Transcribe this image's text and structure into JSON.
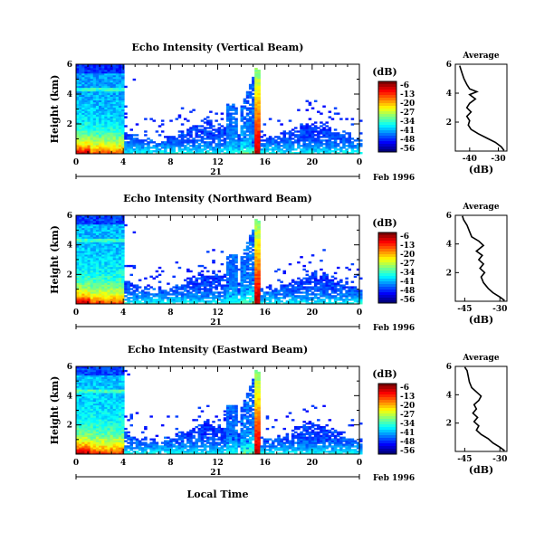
{
  "chart_data": [
    {
      "type": "heatmap",
      "title": "Echo Intensity (Vertical Beam)",
      "ylabel": "Height (km)",
      "x_ticks": [
        "0",
        "4",
        "8",
        "12",
        "16",
        "20",
        "0"
      ],
      "xlim": [
        0,
        24
      ],
      "y_ticks": [
        "2",
        "4",
        "6"
      ],
      "ylim": [
        0,
        6
      ],
      "date_label": "21",
      "date_suffix": "Feb 1996",
      "colorbar": {
        "title": "(dB)",
        "ticks": [
          "-6",
          "-13",
          "-20",
          "-27",
          "-34",
          "-41",
          "-48",
          "-56"
        ]
      },
      "average_profile": {
        "title": "Average",
        "xlabel": "(dB)",
        "x_ticks": [
          "-40",
          "-30"
        ],
        "xlim": [
          -45,
          -27
        ],
        "y_ticks": [
          "2",
          "4",
          "6"
        ],
        "ylim": [
          0,
          6
        ],
        "points": [
          [
            -28,
            0.05
          ],
          [
            -29,
            0.3
          ],
          [
            -31,
            0.6
          ],
          [
            -34,
            0.9
          ],
          [
            -37,
            1.2
          ],
          [
            -39.5,
            1.5
          ],
          [
            -40.5,
            1.8
          ],
          [
            -40,
            2.1
          ],
          [
            -41,
            2.4
          ],
          [
            -39.5,
            2.7
          ],
          [
            -41,
            3.0
          ],
          [
            -40,
            3.3
          ],
          [
            -38,
            3.6
          ],
          [
            -40,
            3.9
          ],
          [
            -37.5,
            4.1
          ],
          [
            -40,
            4.3
          ],
          [
            -41,
            4.6
          ],
          [
            -42,
            5.0
          ],
          [
            -42.5,
            5.3
          ],
          [
            -43,
            5.6
          ],
          [
            -43.5,
            5.9
          ]
        ]
      }
    },
    {
      "type": "heatmap",
      "title": "Echo Intensity (Northward Beam)",
      "ylabel": "Height (km)",
      "x_ticks": [
        "0",
        "4",
        "8",
        "12",
        "16",
        "20",
        "0"
      ],
      "xlim": [
        0,
        24
      ],
      "y_ticks": [
        "2",
        "4",
        "6"
      ],
      "ylim": [
        0,
        6
      ],
      "date_label": "21",
      "date_suffix": "Feb 1996",
      "colorbar": {
        "title": "(dB)",
        "ticks": [
          "-6",
          "-13",
          "-20",
          "-27",
          "-34",
          "-41",
          "-48",
          "-56"
        ]
      },
      "average_profile": {
        "title": "Average",
        "xlabel": "(dB)",
        "x_ticks": [
          "-45",
          "-30"
        ],
        "xlim": [
          -49,
          -27
        ],
        "y_ticks": [
          "2",
          "4",
          "6"
        ],
        "ylim": [
          0,
          6
        ],
        "points": [
          [
            -28,
            0.05
          ],
          [
            -30,
            0.3
          ],
          [
            -33,
            0.6
          ],
          [
            -35,
            0.9
          ],
          [
            -37,
            1.3
          ],
          [
            -38,
            1.7
          ],
          [
            -36.5,
            2.0
          ],
          [
            -38.5,
            2.3
          ],
          [
            -37,
            2.6
          ],
          [
            -39,
            2.9
          ],
          [
            -37.5,
            3.2
          ],
          [
            -40,
            3.5
          ],
          [
            -37,
            3.9
          ],
          [
            -39,
            4.2
          ],
          [
            -42,
            4.5
          ],
          [
            -43,
            4.9
          ],
          [
            -44,
            5.3
          ],
          [
            -45.5,
            5.7
          ],
          [
            -46,
            5.95
          ]
        ]
      }
    },
    {
      "type": "heatmap",
      "title": "Echo Intensity (Eastward Beam)",
      "ylabel": "Height (km)",
      "xlabel": "Local Time",
      "x_ticks": [
        "0",
        "4",
        "8",
        "12",
        "16",
        "20",
        "0"
      ],
      "xlim": [
        0,
        24
      ],
      "y_ticks": [
        "2",
        "4",
        "6"
      ],
      "ylim": [
        0,
        6
      ],
      "date_label": "21",
      "date_suffix": "Feb 1996",
      "colorbar": {
        "title": "(dB)",
        "ticks": [
          "-6",
          "-13",
          "-20",
          "-27",
          "-34",
          "-41",
          "-48",
          "-56"
        ]
      },
      "average_profile": {
        "title": "Average",
        "xlabel": "(dB)",
        "x_ticks": [
          "-45",
          "-30"
        ],
        "xlim": [
          -49,
          -27
        ],
        "y_ticks": [
          "2",
          "4",
          "6"
        ],
        "ylim": [
          0,
          6
        ],
        "points": [
          [
            -28,
            0.05
          ],
          [
            -30,
            0.3
          ],
          [
            -33,
            0.6
          ],
          [
            -35,
            0.9
          ],
          [
            -38,
            1.2
          ],
          [
            -40,
            1.5
          ],
          [
            -39,
            1.8
          ],
          [
            -41,
            2.1
          ],
          [
            -39.5,
            2.4
          ],
          [
            -41.5,
            2.7
          ],
          [
            -40,
            3.0
          ],
          [
            -41,
            3.3
          ],
          [
            -39,
            3.6
          ],
          [
            -38,
            3.9
          ],
          [
            -40,
            4.2
          ],
          [
            -42,
            4.5
          ],
          [
            -43,
            4.9
          ],
          [
            -43.5,
            5.3
          ],
          [
            -44,
            5.7
          ],
          [
            -45,
            5.95
          ]
        ]
      }
    }
  ]
}
